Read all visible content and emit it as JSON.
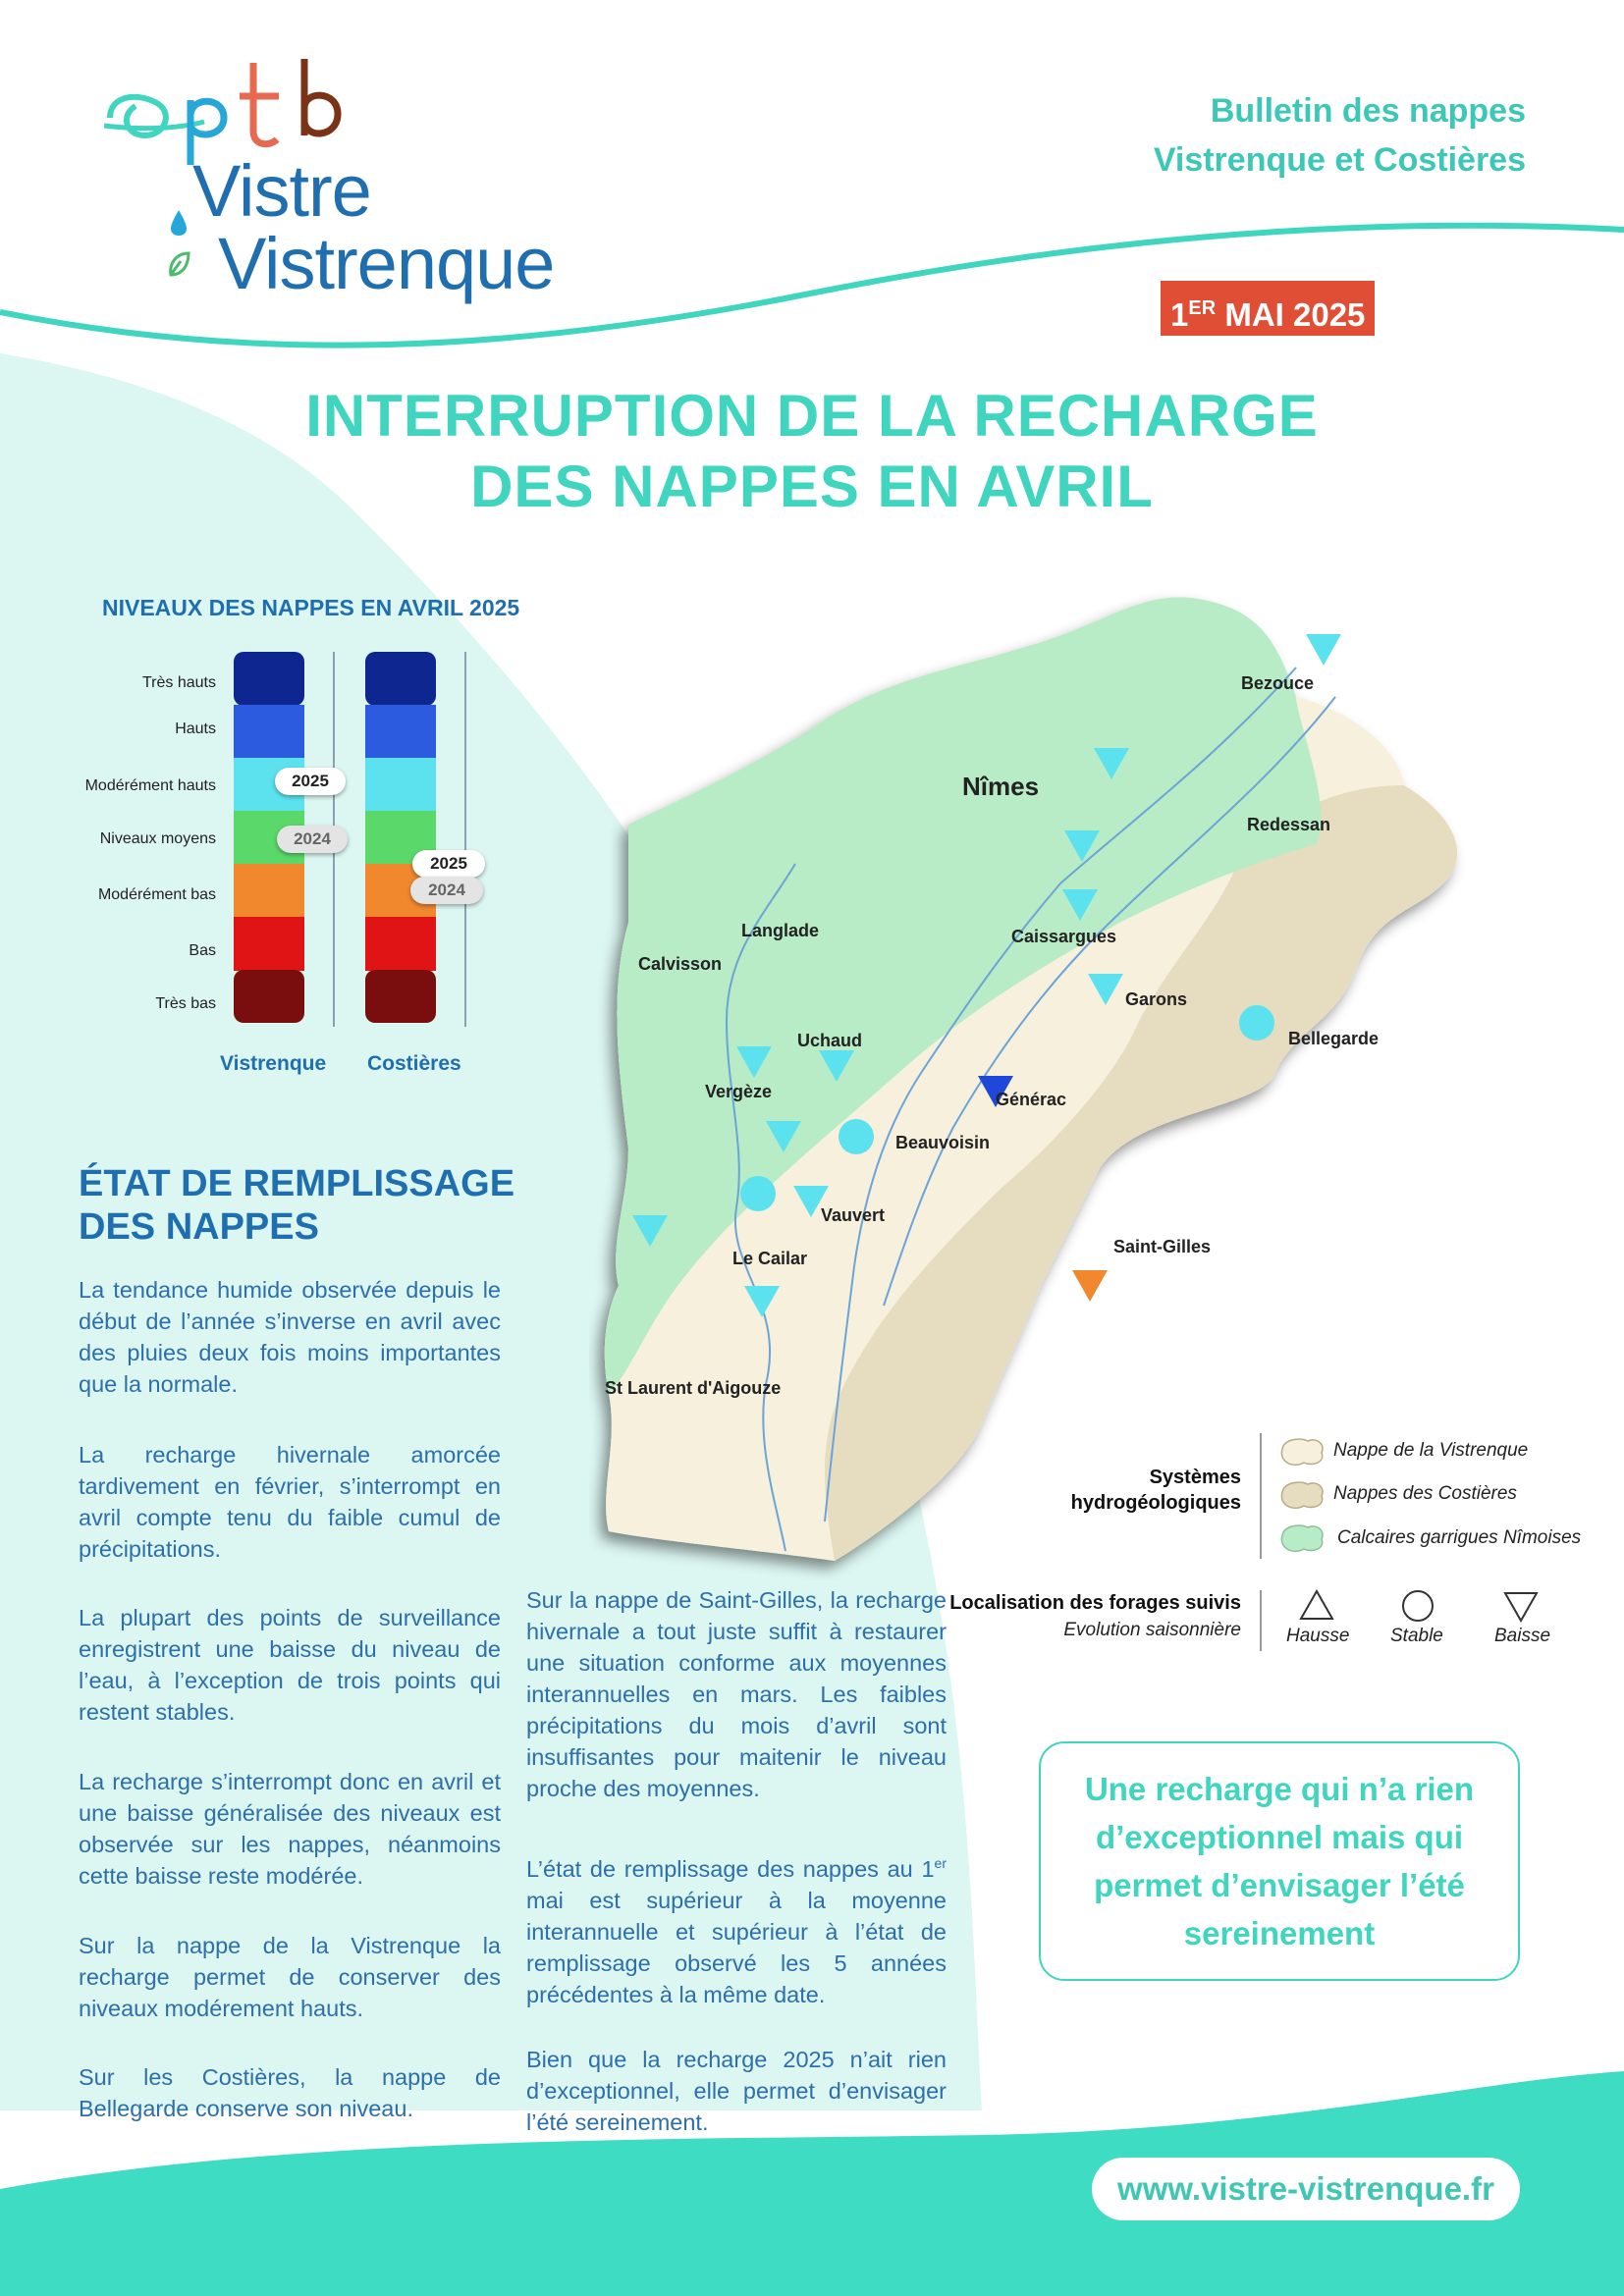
{
  "header": {
    "logo_brand": "eptb",
    "logo_line1": "Vistre",
    "logo_line2": "Vistrenque",
    "bulletin_line1": "Bulletin des nappes",
    "bulletin_line2": "Vistrenque et Costières",
    "date_prefix": "1",
    "date_sup": "ER",
    "date_rest": "MAI 2025"
  },
  "title": {
    "line1": "INTERRUPTION DE LA RECHARGE",
    "line2": "DES NAPPES EN AVRIL"
  },
  "gauge": {
    "title": "NIVEAUX DES NAPPES EN AVRIL 2025",
    "levels": [
      "Très hauts",
      "Hauts",
      "Modérément hauts",
      "Niveaux moyens",
      "Modérément bas",
      "Bas",
      "Très bas"
    ],
    "level_colors": [
      "#0e2790",
      "#2c5be0",
      "#5ce2ee",
      "#5bd86a",
      "#f1882e",
      "#e01414",
      "#7a0d0d"
    ],
    "columns": [
      {
        "name": "Vistrenque",
        "year_2025": "2025",
        "year_2024": "2024",
        "level_2025": "Modérément hauts",
        "level_2024": "Niveaux moyens"
      },
      {
        "name": "Costières",
        "year_2025": "2025",
        "year_2024": "2024",
        "level_2025": "Modérément bas",
        "level_2024": "Modérément bas"
      }
    ]
  },
  "section": {
    "title_line1": "ÉTAT DE REMPLISSAGE",
    "title_line2": "DES NAPPES",
    "left_paragraphs": [
      "La tendance humide observée depuis le début de l’année s’inverse en avril avec des pluies deux fois moins importantes que la normale.",
      "La recharge hivernale amorcée tardivement en février, s’interrompt en avril compte tenu du faible cumul de précipitations.",
      "La plupart des points de surveillance enregistrent une baisse du niveau de l’eau, à l’exception de trois points qui restent stables.",
      "La recharge s’interrompt donc en avril et une baisse généralisée des niveaux est observée sur les nappes, néanmoins cette baisse reste modérée.",
      "Sur la nappe de la Vistrenque la recharge permet de conserver des niveaux modérement hauts.",
      "Sur les Costières, la nappe de Bellegarde conserve son niveau."
    ],
    "right_paragraph1": "Sur la nappe de Saint-Gilles, la recharge hivernale a tout juste suffit à restaurer une situation conforme aux moyennes interannuelles en mars. Les faibles précipitations du mois d’avril sont insuffisantes pour maitenir le niveau proche des moyennes.",
    "right_paragraph2_start": "L’état de remplissage des nappes au 1",
    "right_paragraph2_sup": "er",
    "right_paragraph2_end": " mai est supérieur à la moyenne interannuelle et supérieur à l’état de remplissage observé les 5 années précédentes à la même date.",
    "right_paragraph3": "Bien que la recharge 2025 n’ait rien d’exceptionnel, elle permet d’envisager l’été sereinement."
  },
  "map": {
    "places": [
      {
        "name": "Nîmes",
        "big": true
      },
      {
        "name": "Bezouce"
      },
      {
        "name": "Redessan"
      },
      {
        "name": "Langlade"
      },
      {
        "name": "Calvisson"
      },
      {
        "name": "Caissargues"
      },
      {
        "name": "Garons"
      },
      {
        "name": "Bellegarde"
      },
      {
        "name": "Uchaud"
      },
      {
        "name": "Vergèze"
      },
      {
        "name": "Générac"
      },
      {
        "name": "Beauvoisin"
      },
      {
        "name": "Vauvert"
      },
      {
        "name": "Le Cailar"
      },
      {
        "name": "Saint-Gilles"
      },
      {
        "name": "St Laurent d'Aigouze"
      }
    ],
    "zone_colors": {
      "vistrenque": "#f6f0dd",
      "costieres": "#e6dcc0",
      "calcaires": "#b8ecc6"
    }
  },
  "legend": {
    "systems_title_line1": "Systèmes",
    "systems_title_line2": "hydrogéologiques",
    "systems": [
      "Nappe de la Vistrenque",
      "Nappes des Costières",
      "Calcaires garrigues Nîmoises"
    ],
    "wells_title": "Localisation des forages suivis",
    "wells_subtitle": "Evolution saisonnière",
    "symbols": [
      "Hausse",
      "Stable",
      "Baisse"
    ]
  },
  "callout": "Une recharge qui n’a rien d’exceptionnel mais qui permet d’envisager l’été sereinement",
  "footer": {
    "url": "www.vistre-vistrenque.fr"
  },
  "colors": {
    "teal": "#3fd5bf",
    "blue_text": "#1f6fb0",
    "red_badge": "#e04e35",
    "light_teal_bg": "#dcf6f1"
  }
}
